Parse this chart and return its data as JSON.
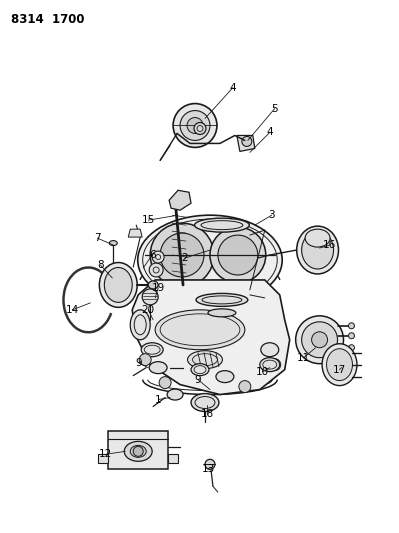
{
  "title": "8314  1700",
  "background_color": "#ffffff",
  "line_color": "#1a1a1a",
  "fig_width": 3.99,
  "fig_height": 5.33,
  "dpi": 100
}
